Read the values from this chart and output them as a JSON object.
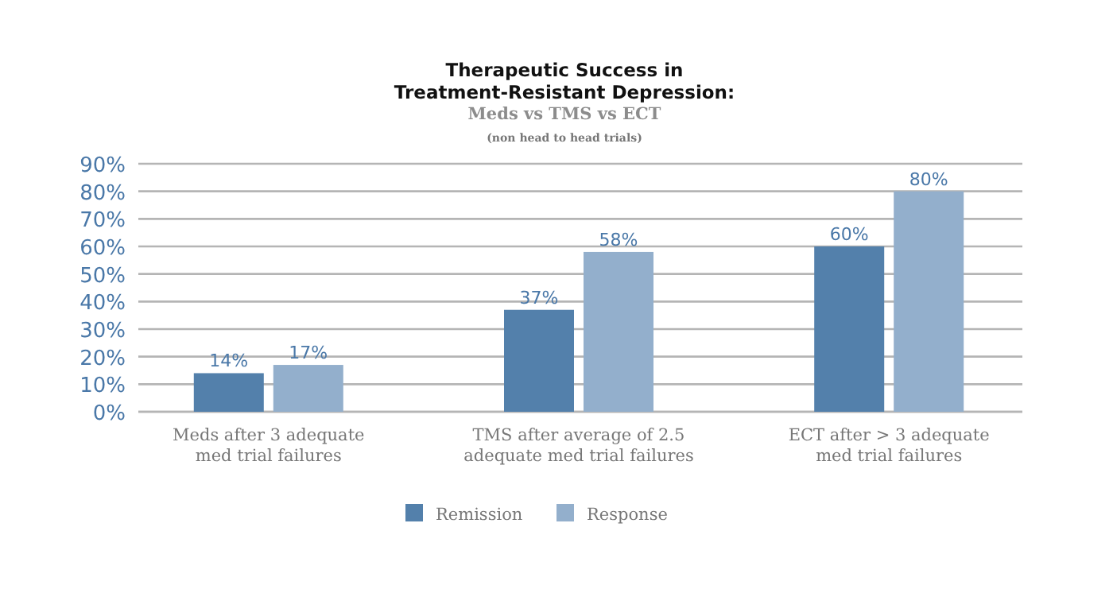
{
  "chart_data": {
    "type": "bar",
    "title": "Therapeutic Success in Treatment-Resistant Depression:",
    "subtitle": "Meds vs TMS vs ECT",
    "annotations": [
      "(non head to head trials)"
    ],
    "categories": [
      "Meds after 3 adequate med trial failures",
      "TMS after average of 2.5 adequate med trial failures",
      "ECT after > 3 adequate med trial failures"
    ],
    "series": [
      {
        "name": "Remission",
        "color": "#5380ab",
        "values": [
          14,
          37,
          60
        ],
        "value_labels": [
          "14%",
          "37%",
          "60%"
        ]
      },
      {
        "name": "Response",
        "color": "#93afcc",
        "values": [
          17,
          58,
          80
        ],
        "value_labels": [
          "17%",
          "58%",
          "80%"
        ]
      }
    ],
    "ylim": [
      0,
      90
    ],
    "yticks": [
      {
        "value": 0,
        "label": "0%"
      },
      {
        "value": 10,
        "label": "10%"
      },
      {
        "value": 20,
        "label": "20%"
      },
      {
        "value": 30,
        "label": "30%"
      },
      {
        "value": 40,
        "label": "40%"
      },
      {
        "value": 50,
        "label": "50%"
      },
      {
        "value": 60,
        "label": "60%"
      },
      {
        "value": 70,
        "label": "70%"
      },
      {
        "value": 80,
        "label": "80%"
      },
      {
        "value": 90,
        "label": "90%"
      }
    ],
    "grid": "y",
    "legend": "bottom"
  }
}
